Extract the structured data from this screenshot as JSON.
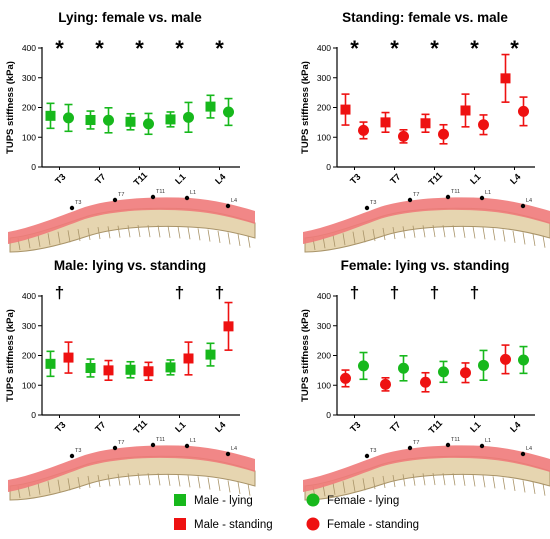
{
  "colors": {
    "male": "#17b81c",
    "female": "#17b81c",
    "standing": "#ee1111",
    "lying": "#17b81c",
    "spine_band": "#f07a7a",
    "spine_bone": "#e6d5b0",
    "spine_shadow": "#a99469"
  },
  "chart_data": [
    {
      "type": "scatter",
      "title": "Lying: female vs. male",
      "ylabel": "TUPS stiffness (kPa)",
      "ylim": [
        0,
        400
      ],
      "yticks": [
        0,
        100,
        200,
        300,
        400
      ],
      "categories": [
        "T3",
        "T7",
        "T11",
        "L1",
        "L4"
      ],
      "spine_labels": [
        "T3",
        "T7",
        "T11",
        "L1",
        "L4"
      ],
      "markers": [
        "*",
        "*",
        "*",
        "*",
        "*"
      ],
      "series": [
        {
          "name": "Male - lying",
          "marker": "square",
          "color": "#17b81c",
          "mean": [
            172,
            158,
            152,
            160,
            203
          ],
          "sd": [
            42,
            30,
            27,
            25,
            38
          ]
        },
        {
          "name": "Female - lying",
          "marker": "circle",
          "color": "#17b81c",
          "mean": [
            165,
            157,
            145,
            167,
            185
          ],
          "sd": [
            45,
            42,
            35,
            50,
            45
          ]
        }
      ]
    },
    {
      "type": "scatter",
      "title": "Standing: female vs. male",
      "ylabel": "TUPS stiffness (kPa)",
      "ylim": [
        0,
        400
      ],
      "yticks": [
        0,
        100,
        200,
        300,
        400
      ],
      "categories": [
        "T3",
        "T7",
        "T11",
        "L1",
        "L4"
      ],
      "spine_labels": [
        "T3",
        "T7",
        "T11",
        "L1",
        "L4"
      ],
      "markers": [
        "*",
        "*",
        "*",
        "*",
        "*"
      ],
      "series": [
        {
          "name": "Male - standing",
          "marker": "square",
          "color": "#ee1111",
          "mean": [
            193,
            150,
            147,
            190,
            298
          ],
          "sd": [
            52,
            33,
            30,
            55,
            80
          ]
        },
        {
          "name": "Female - standing",
          "marker": "circle",
          "color": "#ee1111",
          "mean": [
            123,
            103,
            110,
            142,
            187
          ],
          "sd": [
            28,
            22,
            32,
            33,
            48
          ]
        }
      ]
    },
    {
      "type": "scatter",
      "title": "Male: lying vs. standing",
      "ylabel": "TUPS stiffness (kPa)",
      "ylim": [
        0,
        400
      ],
      "yticks": [
        0,
        100,
        200,
        300,
        400
      ],
      "categories": [
        "T3",
        "T7",
        "T11",
        "L1",
        "L4"
      ],
      "spine_labels": [
        "T3",
        "T7",
        "T11",
        "L1",
        "L4"
      ],
      "markers": [
        "†",
        "",
        "",
        "†",
        "†"
      ],
      "series": [
        {
          "name": "Male - lying",
          "marker": "square",
          "color": "#17b81c",
          "mean": [
            172,
            158,
            152,
            160,
            203
          ],
          "sd": [
            42,
            30,
            27,
            25,
            38
          ]
        },
        {
          "name": "Male - standing",
          "marker": "square",
          "color": "#ee1111",
          "mean": [
            193,
            150,
            147,
            190,
            298
          ],
          "sd": [
            52,
            33,
            30,
            55,
            80
          ]
        }
      ]
    },
    {
      "type": "scatter",
      "title": "Female: lying vs. standing",
      "ylabel": "TUPS stiffness (kPa)",
      "ylim": [
        0,
        400
      ],
      "yticks": [
        0,
        100,
        200,
        300,
        400
      ],
      "categories": [
        "T3",
        "T7",
        "T11",
        "L1",
        "L4"
      ],
      "spine_labels": [
        "T3",
        "T7",
        "T11",
        "L1",
        "L4"
      ],
      "markers": [
        "†",
        "†",
        "†",
        "†",
        ""
      ],
      "series": [
        {
          "name": "Female - standing",
          "marker": "circle",
          "color": "#ee1111",
          "mean": [
            123,
            103,
            110,
            142,
            187
          ],
          "sd": [
            28,
            22,
            32,
            33,
            48
          ]
        },
        {
          "name": "Female - lying",
          "marker": "circle",
          "color": "#17b81c",
          "mean": [
            165,
            157,
            145,
            167,
            185
          ],
          "sd": [
            45,
            42,
            35,
            50,
            45
          ]
        }
      ]
    }
  ],
  "legend": [
    {
      "label": "Male - lying",
      "marker": "square",
      "color": "#17b81c"
    },
    {
      "label": "Female - lying",
      "marker": "circle",
      "color": "#17b81c"
    },
    {
      "label": "Male - standing",
      "marker": "square",
      "color": "#ee1111"
    },
    {
      "label": "Female - standing",
      "marker": "circle",
      "color": "#ee1111"
    }
  ]
}
